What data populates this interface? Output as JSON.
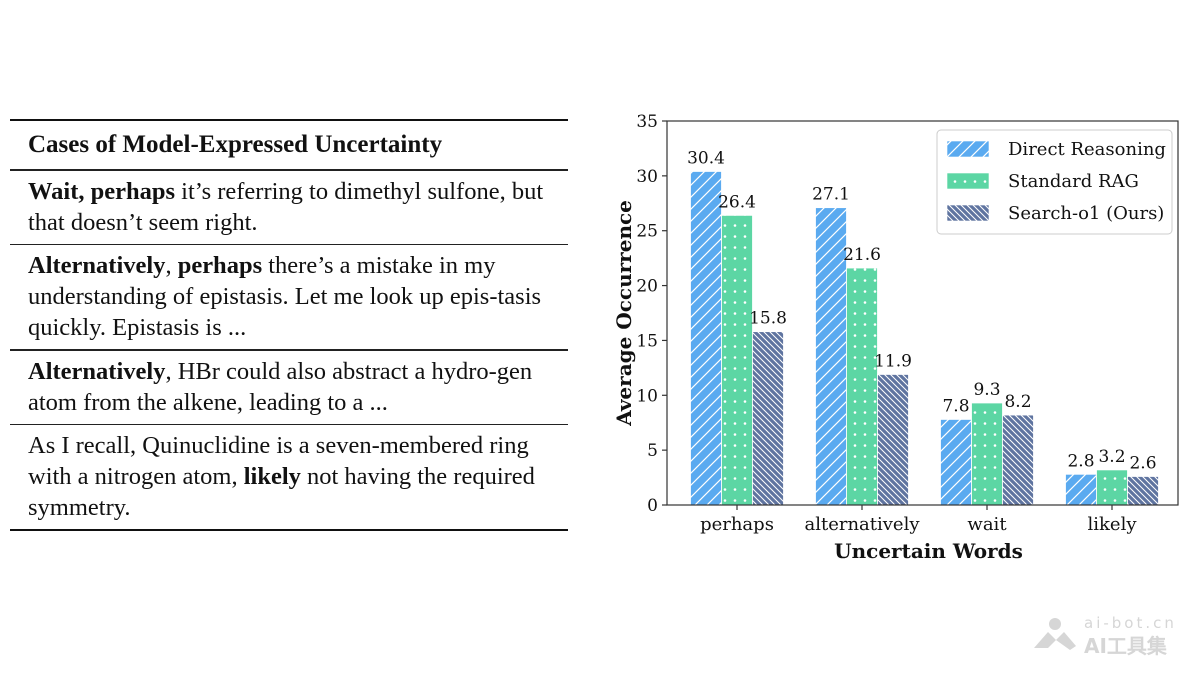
{
  "table": {
    "title": "Cases of Model-Expressed Uncertainty",
    "rows": [
      {
        "parts": [
          {
            "text": "Wait, perhaps",
            "bold": true
          },
          {
            "text": " it’s referring to dimethyl sulfone, but that doesn’t seem right.",
            "bold": false
          }
        ]
      },
      {
        "parts": [
          {
            "text": "Alternatively",
            "bold": true
          },
          {
            "text": ", ",
            "bold": false
          },
          {
            "text": "perhaps",
            "bold": true
          },
          {
            "text": " there’s a mistake in my understanding of epistasis. Let me look up epis-tasis quickly. Epistasis is ...",
            "bold": false
          }
        ]
      },
      {
        "parts": [
          {
            "text": "Alternatively",
            "bold": true
          },
          {
            "text": ", HBr could also abstract a hydro-gen atom from the alkene, leading to a ...",
            "bold": false
          }
        ]
      },
      {
        "parts": [
          {
            "text": "As I recall, Quinuclidine is a seven-membered ring with a nitrogen atom, ",
            "bold": false
          },
          {
            "text": "likely",
            "bold": true
          },
          {
            "text": " not having the required symmetry.",
            "bold": false
          }
        ]
      }
    ]
  },
  "chart_data": {
    "type": "bar",
    "title": "",
    "xlabel": "Uncertain Words",
    "ylabel": "Average Occurrence",
    "categories": [
      "perhaps",
      "alternatively",
      "wait",
      "likely"
    ],
    "ylim": [
      0,
      35
    ],
    "yticks": [
      0,
      5,
      10,
      15,
      20,
      25,
      30,
      35
    ],
    "grid": false,
    "legend_position": "top-right",
    "series": [
      {
        "name": "Direct Reasoning",
        "values": [
          30.4,
          27.1,
          7.8,
          2.8
        ],
        "color": "#5aaaf0",
        "hatch": "diagonal-forward"
      },
      {
        "name": "Standard RAG",
        "values": [
          26.4,
          21.6,
          9.3,
          3.2
        ],
        "color": "#5cd6a4",
        "hatch": "dots"
      },
      {
        "name": "Search-o1 (Ours)",
        "values": [
          15.8,
          11.9,
          8.2,
          2.6
        ],
        "color": "#5f74a0",
        "hatch": "diagonal-back"
      }
    ],
    "data_labels": [
      [
        "30.4",
        "27.1",
        "7.8",
        "2.8"
      ],
      [
        "26.4",
        "21.6",
        "9.3",
        "3.2"
      ],
      [
        "15.8",
        "11.9",
        "8.2",
        "2.6"
      ]
    ]
  },
  "watermark": {
    "line1": "ai-bot.cn",
    "line2": "AI工具集",
    "icon": "ai-bot-logo-icon"
  }
}
